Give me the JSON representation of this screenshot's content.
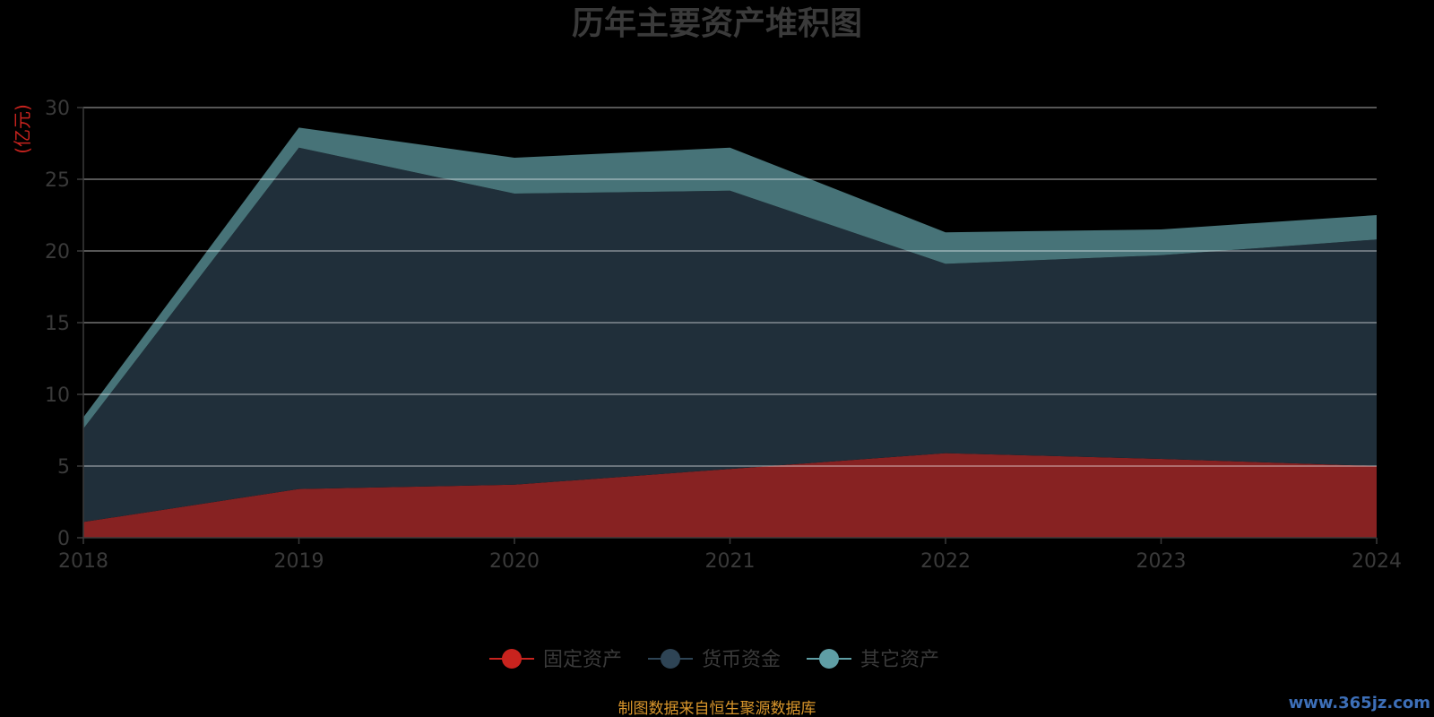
{
  "chart_data": {
    "type": "area",
    "stacked": true,
    "title": "历年主要资产堆积图",
    "y_unit": "(亿元)",
    "x": [
      "2018",
      "2019",
      "2020",
      "2021",
      "2022",
      "2023",
      "2024"
    ],
    "ylim": [
      0,
      30
    ],
    "y_ticks": [
      0,
      5,
      10,
      15,
      20,
      25,
      30
    ],
    "grid": true,
    "legend_position": "bottom-center",
    "series": [
      {
        "name": "固定资产",
        "color": "#c8231e",
        "fill": "#872222",
        "values": [
          1.1,
          3.4,
          3.7,
          4.8,
          5.9,
          5.5,
          5.0
        ]
      },
      {
        "name": "货币资金",
        "color": "#2e4455",
        "fill": "#202f3a",
        "values": [
          6.5,
          23.8,
          20.3,
          19.4,
          13.2,
          14.2,
          15.8
        ]
      },
      {
        "name": "其它资产",
        "color": "#5f9ea5",
        "fill": "#477378",
        "values": [
          0.8,
          1.4,
          2.5,
          3.0,
          2.2,
          1.8,
          1.7
        ]
      }
    ]
  },
  "footer": {
    "source": "制图数据来自恒生聚源数据库",
    "watermark": "www.365jz.com"
  }
}
